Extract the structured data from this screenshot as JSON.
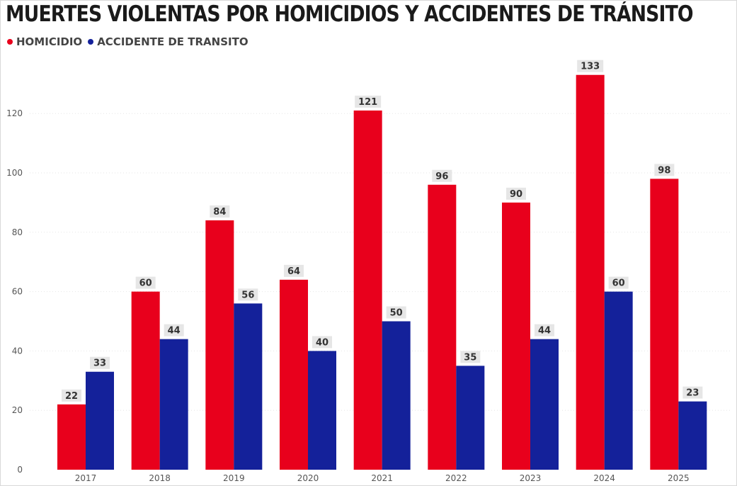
{
  "chart_data": {
    "type": "bar",
    "title": "MUERTES VIOLENTAS POR HOMICIDIOS Y ACCIDENTES DE TRÁNSITO",
    "categories": [
      "2017",
      "2018",
      "2019",
      "2020",
      "2021",
      "2022",
      "2023",
      "2024",
      "2025"
    ],
    "series": [
      {
        "name": "HOMICIDIO",
        "color": "#e8001c",
        "values": [
          22,
          60,
          84,
          64,
          121,
          96,
          90,
          133,
          98
        ]
      },
      {
        "name": "ACCIDENTE DE TRANSITO",
        "color": "#14219a",
        "values": [
          33,
          44,
          56,
          40,
          50,
          35,
          44,
          60,
          23
        ]
      }
    ],
    "yticks": [
      0,
      20,
      40,
      60,
      80,
      100,
      120
    ],
    "ylim": [
      0,
      140
    ],
    "xlabel": "",
    "ylabel": "",
    "grid": true,
    "legend_position": "top-left"
  }
}
